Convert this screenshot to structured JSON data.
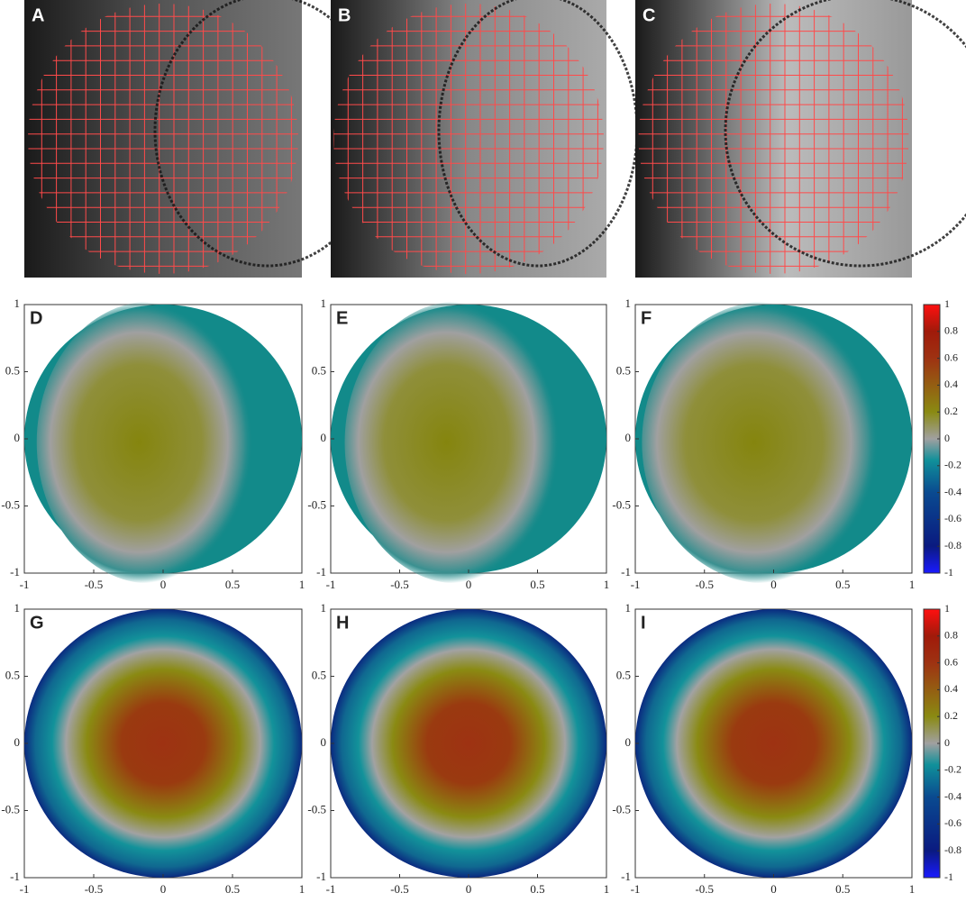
{
  "image_panels": [
    {
      "label": "A"
    },
    {
      "label": "B"
    },
    {
      "label": "C"
    }
  ],
  "map_panels": [
    {
      "label": "D"
    },
    {
      "label": "E"
    },
    {
      "label": "F"
    },
    {
      "label": "G"
    },
    {
      "label": "H"
    },
    {
      "label": "I"
    }
  ],
  "axes": {
    "xlim": [
      -1,
      1
    ],
    "ylim": [
      -1,
      1
    ],
    "xticks": [
      -1,
      -0.5,
      0,
      0.5,
      1
    ],
    "yticks": [
      -1,
      -0.5,
      0,
      0.5,
      1
    ]
  },
  "colorbar": {
    "lim": [
      -1,
      1
    ],
    "ticks": [
      1,
      0.8,
      0.6,
      0.4,
      0.2,
      0,
      -0.2,
      -0.4,
      -0.6,
      -0.8,
      -1
    ]
  }
}
